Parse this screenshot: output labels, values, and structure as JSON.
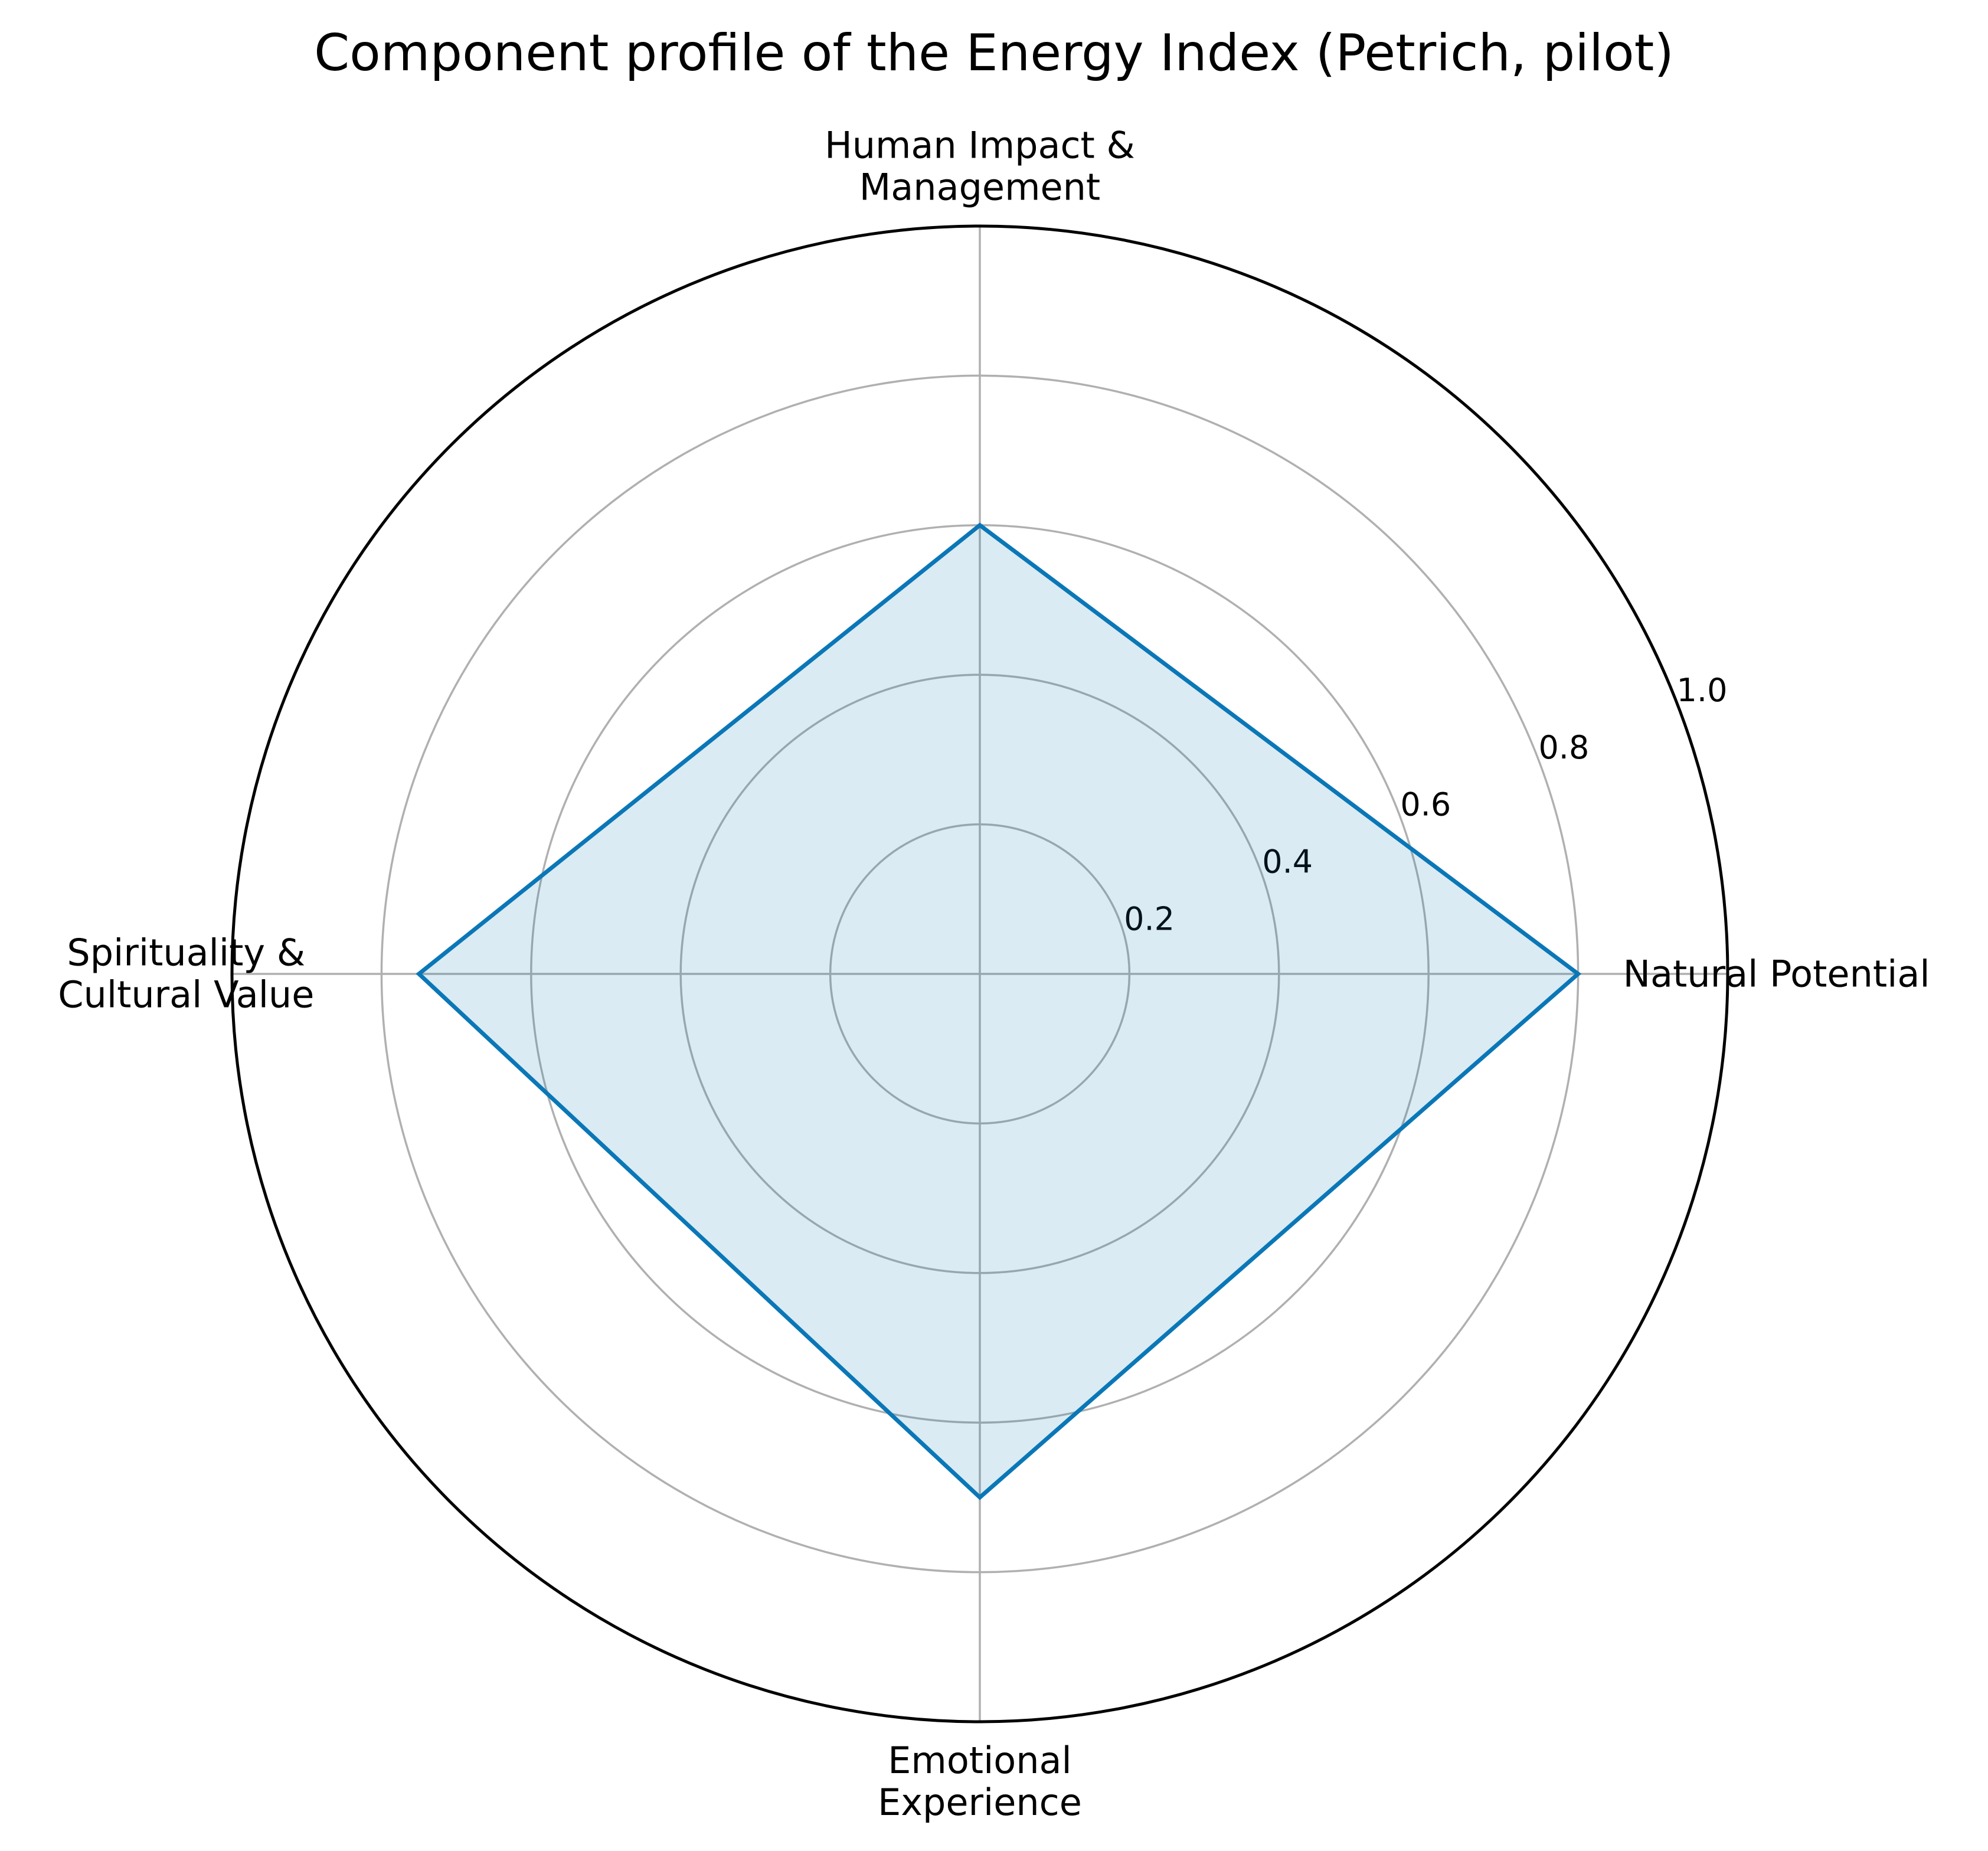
{
  "chart_data": {
    "type": "radar",
    "title": "Component profile of the Energy Index (Petrich, pilot)",
    "categories": [
      "Natural Potential",
      "Human Impact &\nManagement",
      "Spirituality &\nCultural Value",
      "Emotional\nExperience"
    ],
    "values": [
      0.8,
      0.6,
      0.75,
      0.7
    ],
    "color": "#0a77b7",
    "ylim": [
      0,
      1.0
    ],
    "yticks": [
      0.2,
      0.4,
      0.6,
      0.8,
      {
        "value": 1.0,
        "label": "1.0"
      }
    ],
    "grid": true
  }
}
